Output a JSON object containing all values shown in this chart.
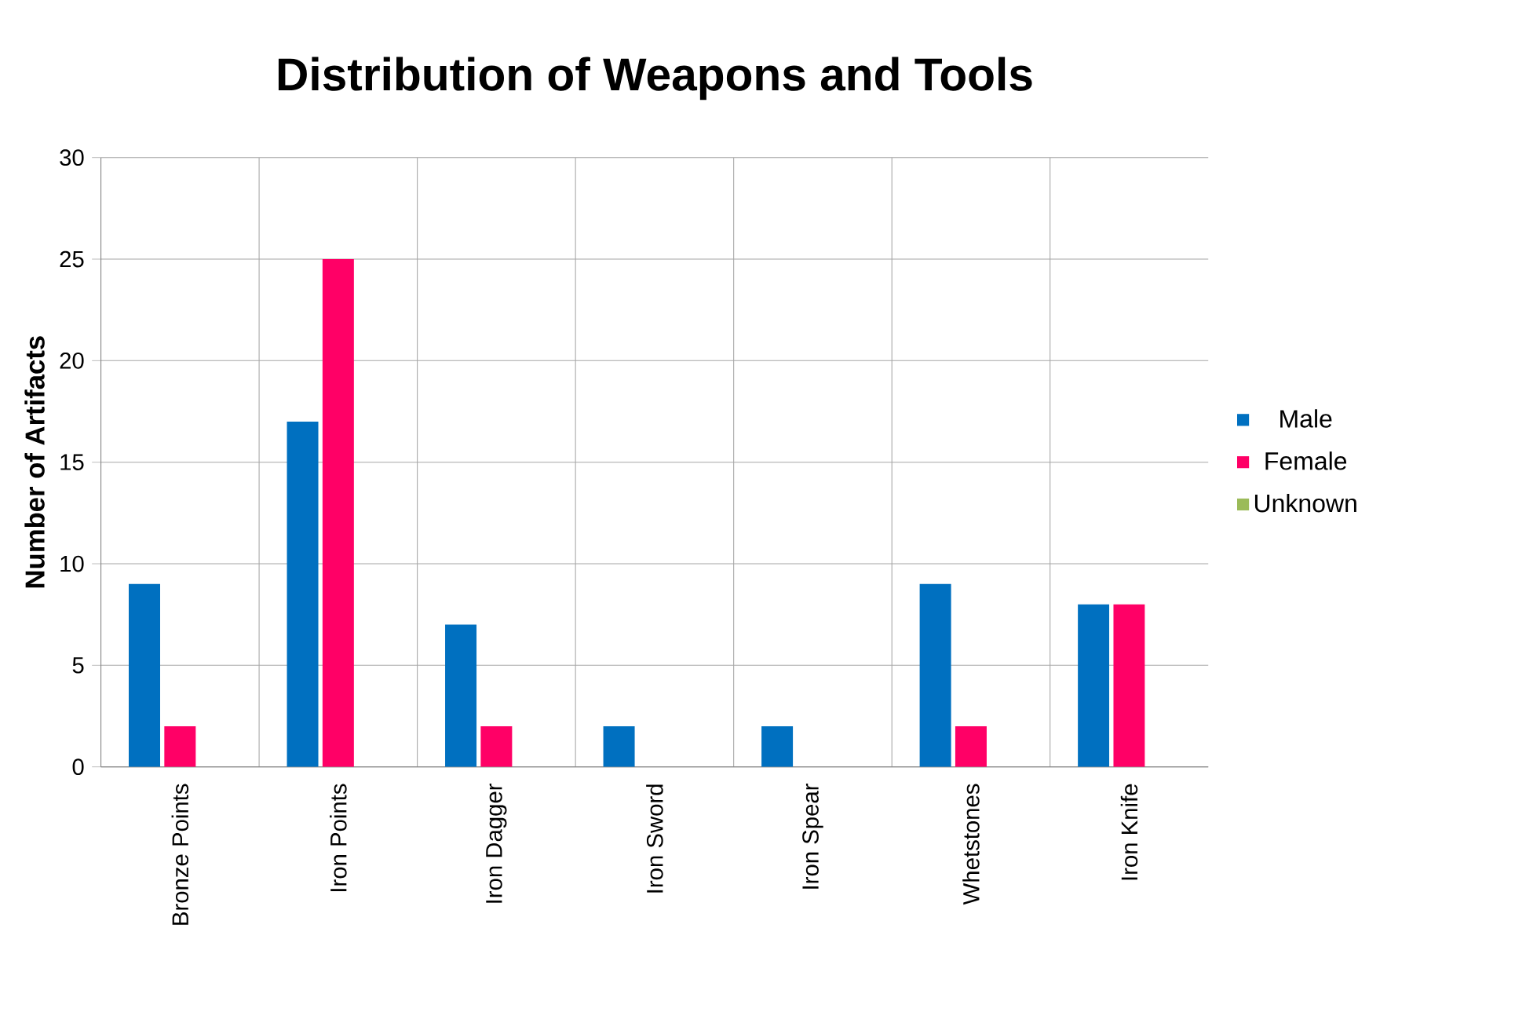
{
  "chart_data": {
    "type": "bar",
    "title": "Distribution of Weapons and Tools",
    "ylabel": "Number of Artifacts",
    "categories": [
      "Bronze Points",
      "Iron Points",
      "Iron Dagger",
      "Iron Sword",
      "Iron Spear",
      "Whetstones",
      "Iron Knife"
    ],
    "series": [
      {
        "name": "Male",
        "color": "#0070c0",
        "values": [
          9,
          17,
          7,
          2,
          2,
          9,
          8
        ]
      },
      {
        "name": "Female",
        "color": "#ff0066",
        "values": [
          2,
          25,
          2,
          0,
          0,
          2,
          8
        ]
      },
      {
        "name": "Unknown",
        "color": "#9bbb59",
        "values": [
          0,
          0,
          0,
          0,
          0,
          0,
          0
        ]
      }
    ],
    "ylim": [
      0,
      30
    ],
    "yticks": [
      0,
      5,
      10,
      15,
      20,
      25,
      30
    ],
    "grid": true,
    "legend": "right"
  }
}
